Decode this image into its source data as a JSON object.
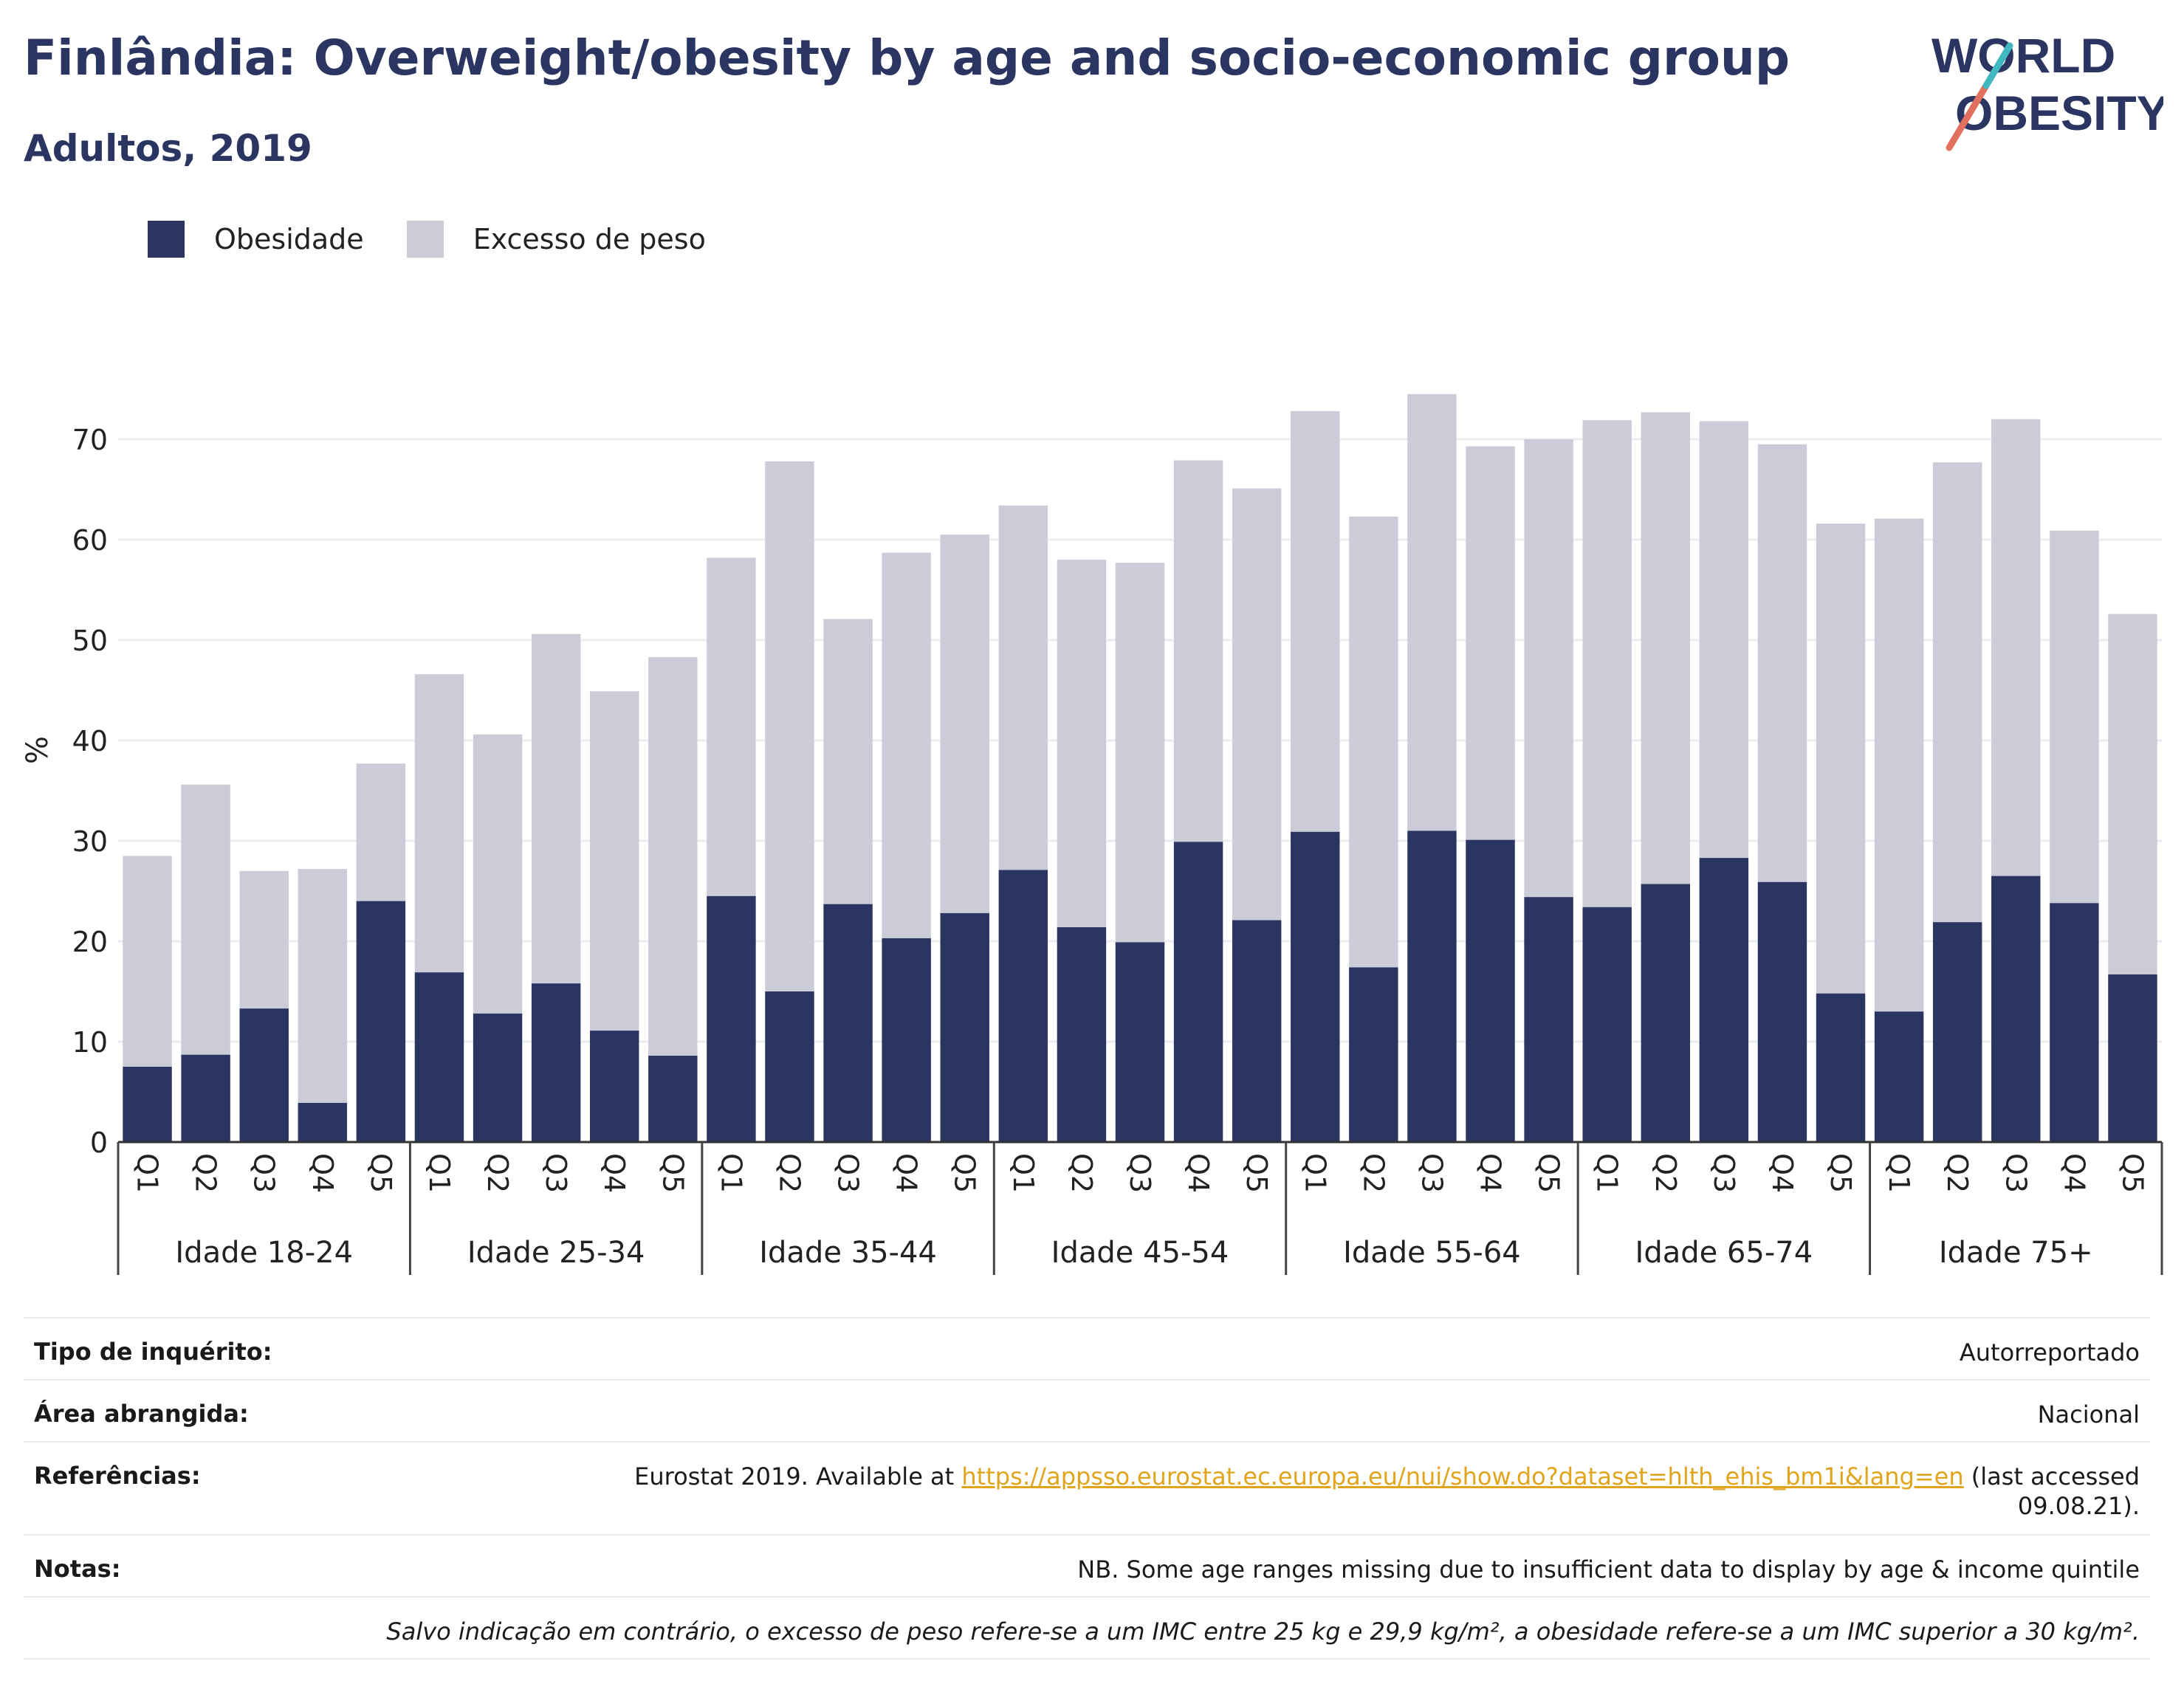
{
  "header": {
    "title": "Finlândia: Overweight/obesity by age and socio-economic group",
    "subtitle": "Adultos, 2019"
  },
  "logo": {
    "line1": "WORLD",
    "line2": "OBESITY"
  },
  "colors": {
    "obesity": "#2a3562",
    "overweight": "#cbccd8",
    "accent": "#e0a51c",
    "grid": "#ebecf0"
  },
  "legend": [
    {
      "label": "Obesidade",
      "color": "#2a3562"
    },
    {
      "label": "Excesso de peso",
      "color": "#cbccd8"
    }
  ],
  "chart_data": {
    "type": "bar",
    "stacked": true,
    "ylabel": "%",
    "ylim": [
      0,
      75
    ],
    "yticks": [
      0,
      10,
      20,
      30,
      40,
      50,
      60,
      70
    ],
    "grid": true,
    "legend_position": "top-left",
    "group_labels": [
      "Idade 18-24",
      "Idade 25-34",
      "Idade 35-44",
      "Idade 45-54",
      "Idade 55-64",
      "Idade 65-74",
      "Idade 75+"
    ],
    "quintiles": [
      "Q1",
      "Q2",
      "Q3",
      "Q4",
      "Q5"
    ],
    "series": [
      {
        "name": "Obesidade",
        "values": [
          7.5,
          8.7,
          13.3,
          3.9,
          24.0,
          16.9,
          12.8,
          15.8,
          11.1,
          8.6,
          24.5,
          15.0,
          23.7,
          20.3,
          22.8,
          27.1,
          21.4,
          19.9,
          29.9,
          22.1,
          30.9,
          17.4,
          31.0,
          30.1,
          24.4,
          23.4,
          25.7,
          28.3,
          25.9,
          14.8,
          13.0,
          21.9,
          26.5,
          23.8,
          16.7
        ]
      },
      {
        "name": "Excesso de peso",
        "values": [
          21.0,
          26.9,
          13.7,
          23.3,
          13.7,
          29.7,
          27.8,
          34.8,
          33.8,
          39.7,
          33.7,
          52.8,
          28.4,
          38.4,
          37.7,
          36.3,
          36.6,
          37.8,
          38.0,
          43.0,
          41.9,
          44.9,
          43.5,
          39.2,
          45.6,
          48.5,
          47.0,
          43.5,
          43.6,
          46.8,
          49.1,
          45.8,
          45.5,
          37.1,
          35.9
        ]
      }
    ]
  },
  "info": {
    "rows": [
      {
        "label": "Tipo de inquérito:",
        "value": "Autorreportado"
      },
      {
        "label": "Área abrangida:",
        "value": "Nacional"
      },
      {
        "label": "Referências:",
        "value_prefix": "Eurostat 2019. Available at ",
        "link": "https://appsso.eurostat.ec.europa.eu/nui/show.do?dataset=hlth_ehis_bm1i&lang=en",
        "value_suffix_1": " (last accessed",
        "value_suffix_2": "09.08.21)."
      },
      {
        "label": "Notas:",
        "value": "NB. Some age ranges missing due to insufficient data to display by age & income quintile"
      },
      {
        "label": "",
        "value": "Salvo indicação em contrário, o excesso de peso refere-se a um IMC entre 25 kg e 29,9 kg/m², a obesidade refere-se a um IMC superior a 30 kg/m²."
      }
    ]
  }
}
